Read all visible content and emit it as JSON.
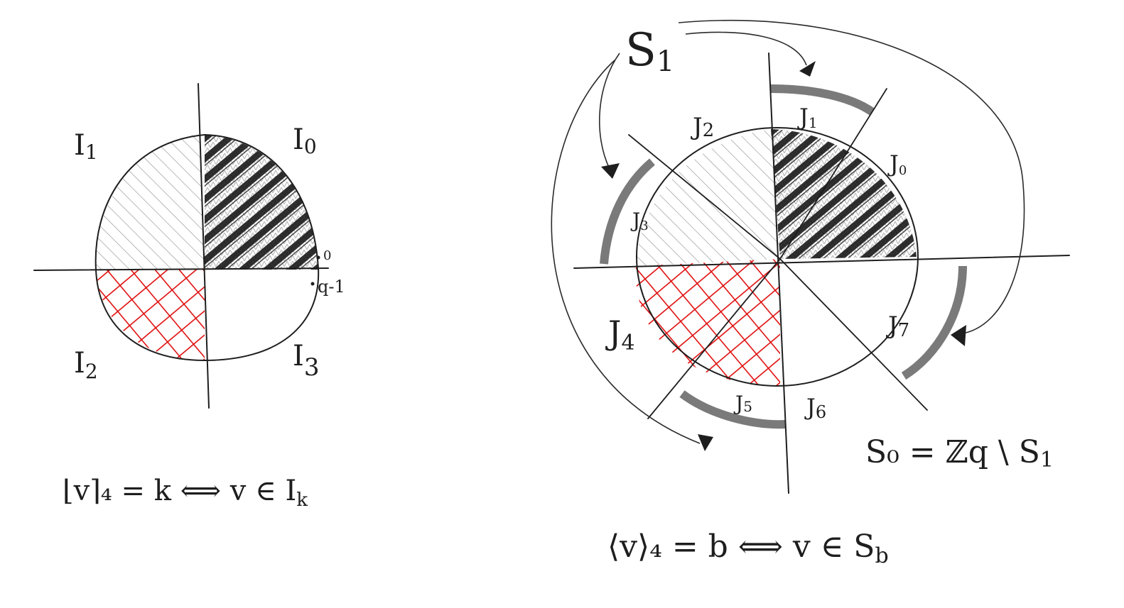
{
  "left_diagram": {
    "labels": {
      "I0": "I",
      "I0_sub": "0",
      "I1": "I",
      "I1_sub": "1",
      "I2": "I",
      "I2_sub": "2",
      "I3": "I",
      "I3_sub": "3",
      "zero": "0",
      "q_minus_1": "q-1"
    },
    "formula": "⌊v⌉₄ = k  ⟺  v ∈ I",
    "formula_sub": "k"
  },
  "right_diagram": {
    "S1": "S",
    "S1_sub": "1",
    "segments": [
      {
        "label": "J",
        "sub": "0"
      },
      {
        "label": "J",
        "sub": "1"
      },
      {
        "label": "J",
        "sub": "2"
      },
      {
        "label": "J",
        "sub": "3"
      },
      {
        "label": "J",
        "sub": "4"
      },
      {
        "label": "J",
        "sub": "5"
      },
      {
        "label": "J",
        "sub": "6"
      },
      {
        "label": "J",
        "sub": "7"
      }
    ],
    "S0_formula": "S₀ = ℤq \\ S",
    "S0_formula_sub": "1",
    "formula": "⟨v⟩₄ = b  ⟺  v ∈ S",
    "formula_sub": "b"
  },
  "colors": {
    "ink": "#1e1e1e",
    "red": "#e01010",
    "grey": "#8a8a8a"
  }
}
